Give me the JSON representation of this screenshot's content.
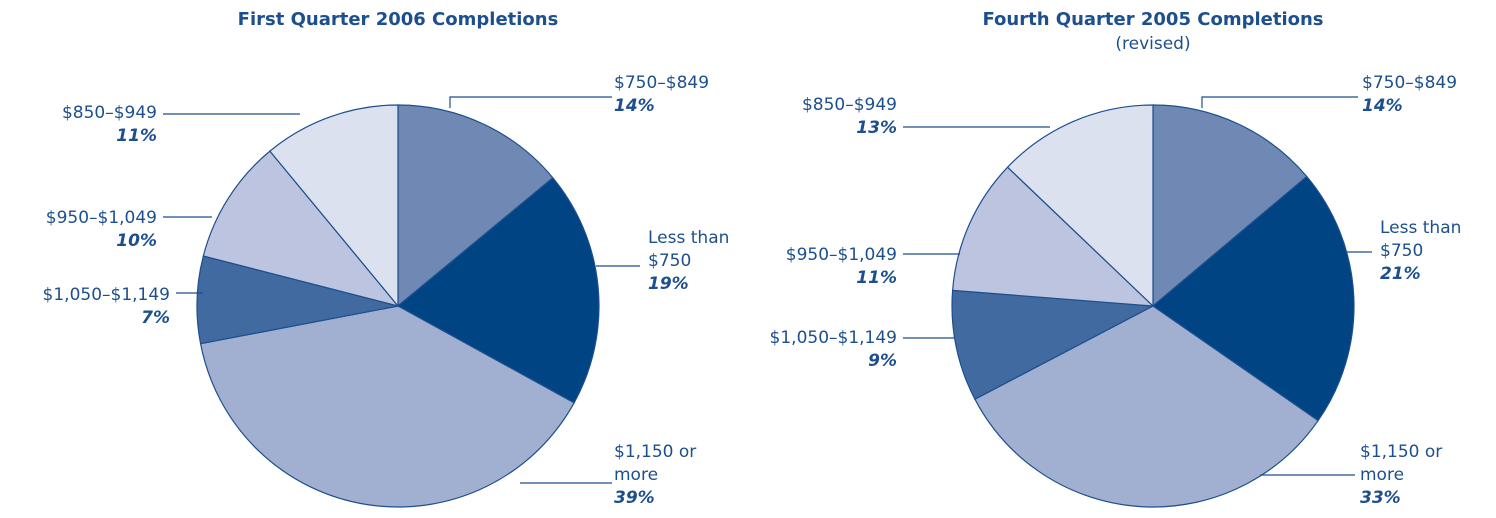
{
  "chart_data": [
    {
      "type": "pie",
      "title": "First Quarter 2006 Completions",
      "categories": [
        "$750–$849",
        "Less than $750",
        "$1,150 or more",
        "$1,050–$1,149",
        "$950–$1,049",
        "$850–$949"
      ],
      "values": [
        14,
        19,
        39,
        7,
        10,
        11
      ],
      "value_labels": [
        "14%",
        "19%",
        "39%",
        "7%",
        "10%",
        "11%"
      ],
      "colors": [
        "#6f88b4",
        "#004483",
        "#a1b0d0",
        "#416aa1",
        "#bcc4df",
        "#dce1ef"
      ]
    },
    {
      "type": "pie",
      "title": "Fourth Quarter 2005 Completions",
      "subtitle": "(revised)",
      "categories": [
        "$750–$849",
        "Less than $750",
        "$1,150 or more",
        "$1,050–$1,149",
        "$950–$1,049",
        "$850–$949"
      ],
      "values": [
        14,
        21,
        33,
        9,
        11,
        13
      ],
      "value_labels": [
        "14%",
        "21%",
        "33%",
        "9%",
        "11%",
        "13%"
      ],
      "colors": [
        "#6f88b4",
        "#004483",
        "#a1b0d0",
        "#416aa1",
        "#bcc4df",
        "#dce1ef"
      ]
    }
  ]
}
